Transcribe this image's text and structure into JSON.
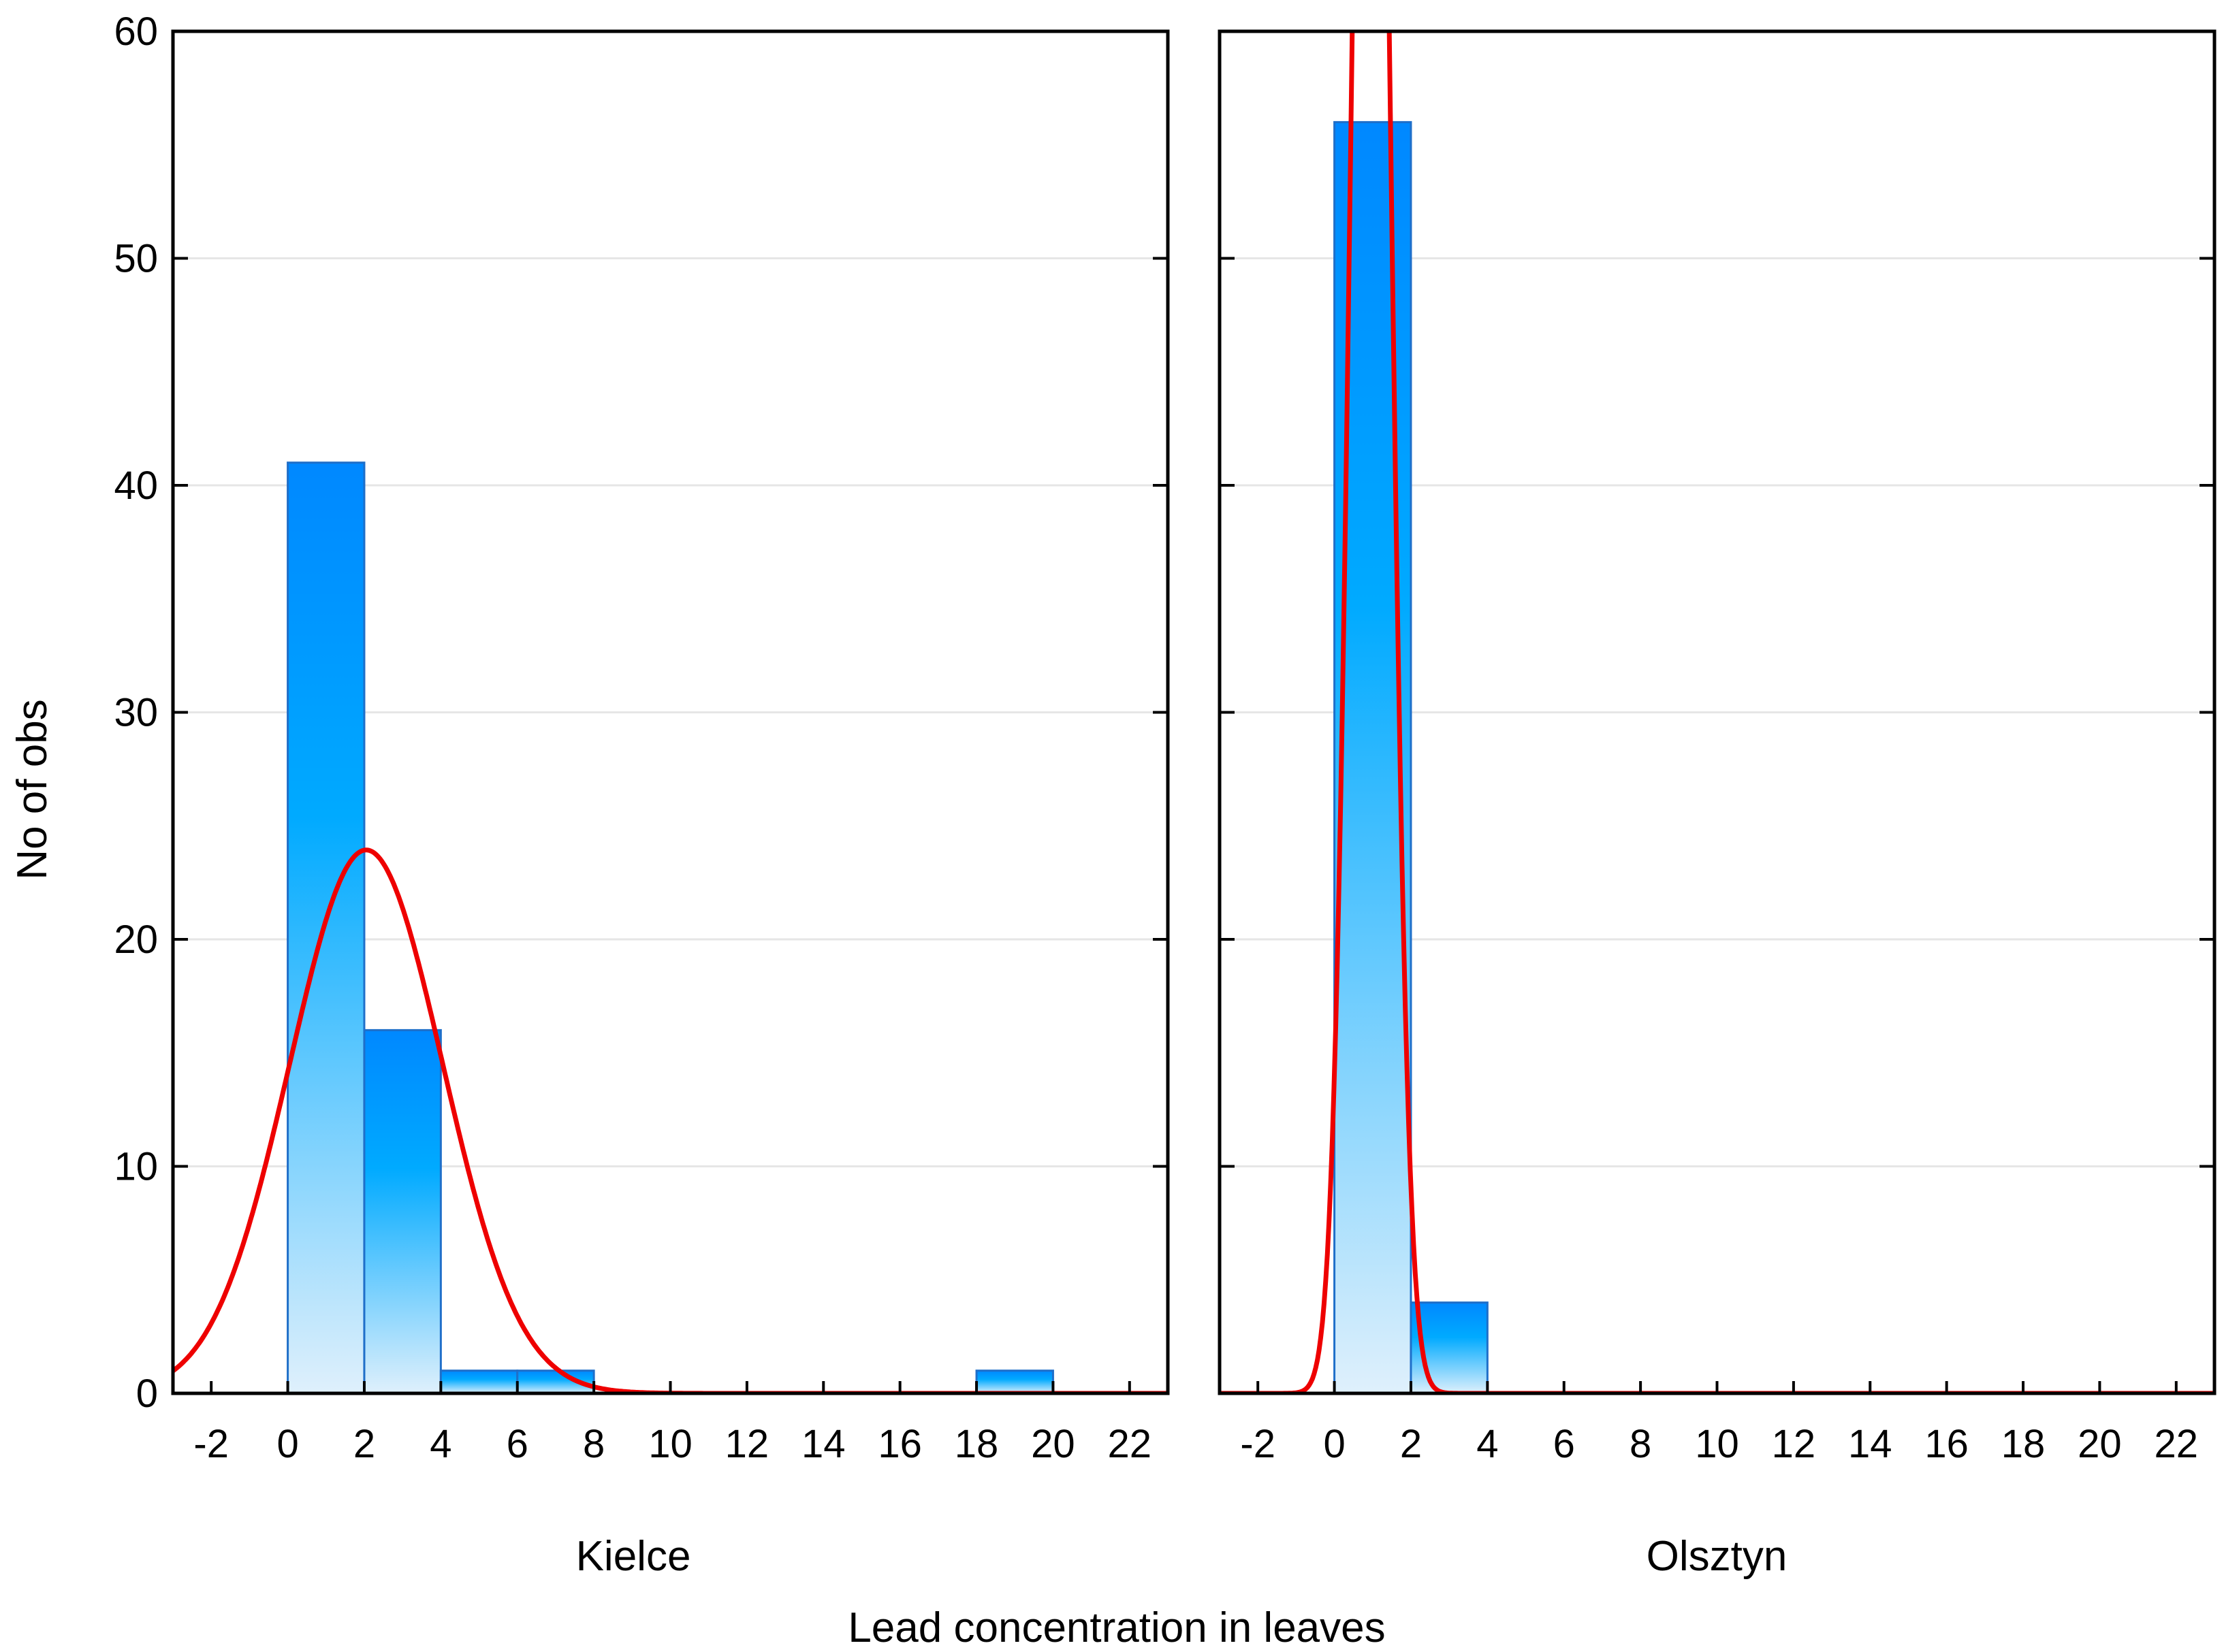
{
  "chart_data": {
    "type": "bar",
    "subtype": "histogram",
    "ylabel": "No of obs",
    "xlabel": "Lead concentration in leaves",
    "ylim": [
      0,
      60
    ],
    "xlim": [
      -3,
      23
    ],
    "yticks": [
      0,
      10,
      20,
      30,
      40,
      50,
      60
    ],
    "xticks": [
      -2,
      0,
      2,
      4,
      6,
      8,
      10,
      12,
      14,
      16,
      18,
      20,
      22
    ],
    "grid": true,
    "bar_colors": {
      "top": "#0088ff",
      "mid": "#00aaff",
      "bottom": "#dff0fc",
      "line": "#1f6fc9"
    },
    "fit_color": "#ee0000",
    "panels": [
      {
        "title": "Kielce",
        "bins": [
          {
            "from": 0,
            "to": 2,
            "count": 41
          },
          {
            "from": 2,
            "to": 4,
            "count": 16
          },
          {
            "from": 4,
            "to": 6,
            "count": 1
          },
          {
            "from": 6,
            "to": 8,
            "count": 1
          },
          {
            "from": 18,
            "to": 20,
            "count": 1
          }
        ],
        "normal_fit": {
          "mean": 2.05,
          "sd": 2.0,
          "n": 60,
          "bin_width": 2
        }
      },
      {
        "title": "Olsztyn",
        "bins": [
          {
            "from": 0,
            "to": 2,
            "count": 56
          },
          {
            "from": 2,
            "to": 4,
            "count": 4
          }
        ],
        "normal_fit": {
          "mean": 0.95,
          "sd": 0.48,
          "n": 60,
          "bin_width": 2
        }
      }
    ]
  }
}
